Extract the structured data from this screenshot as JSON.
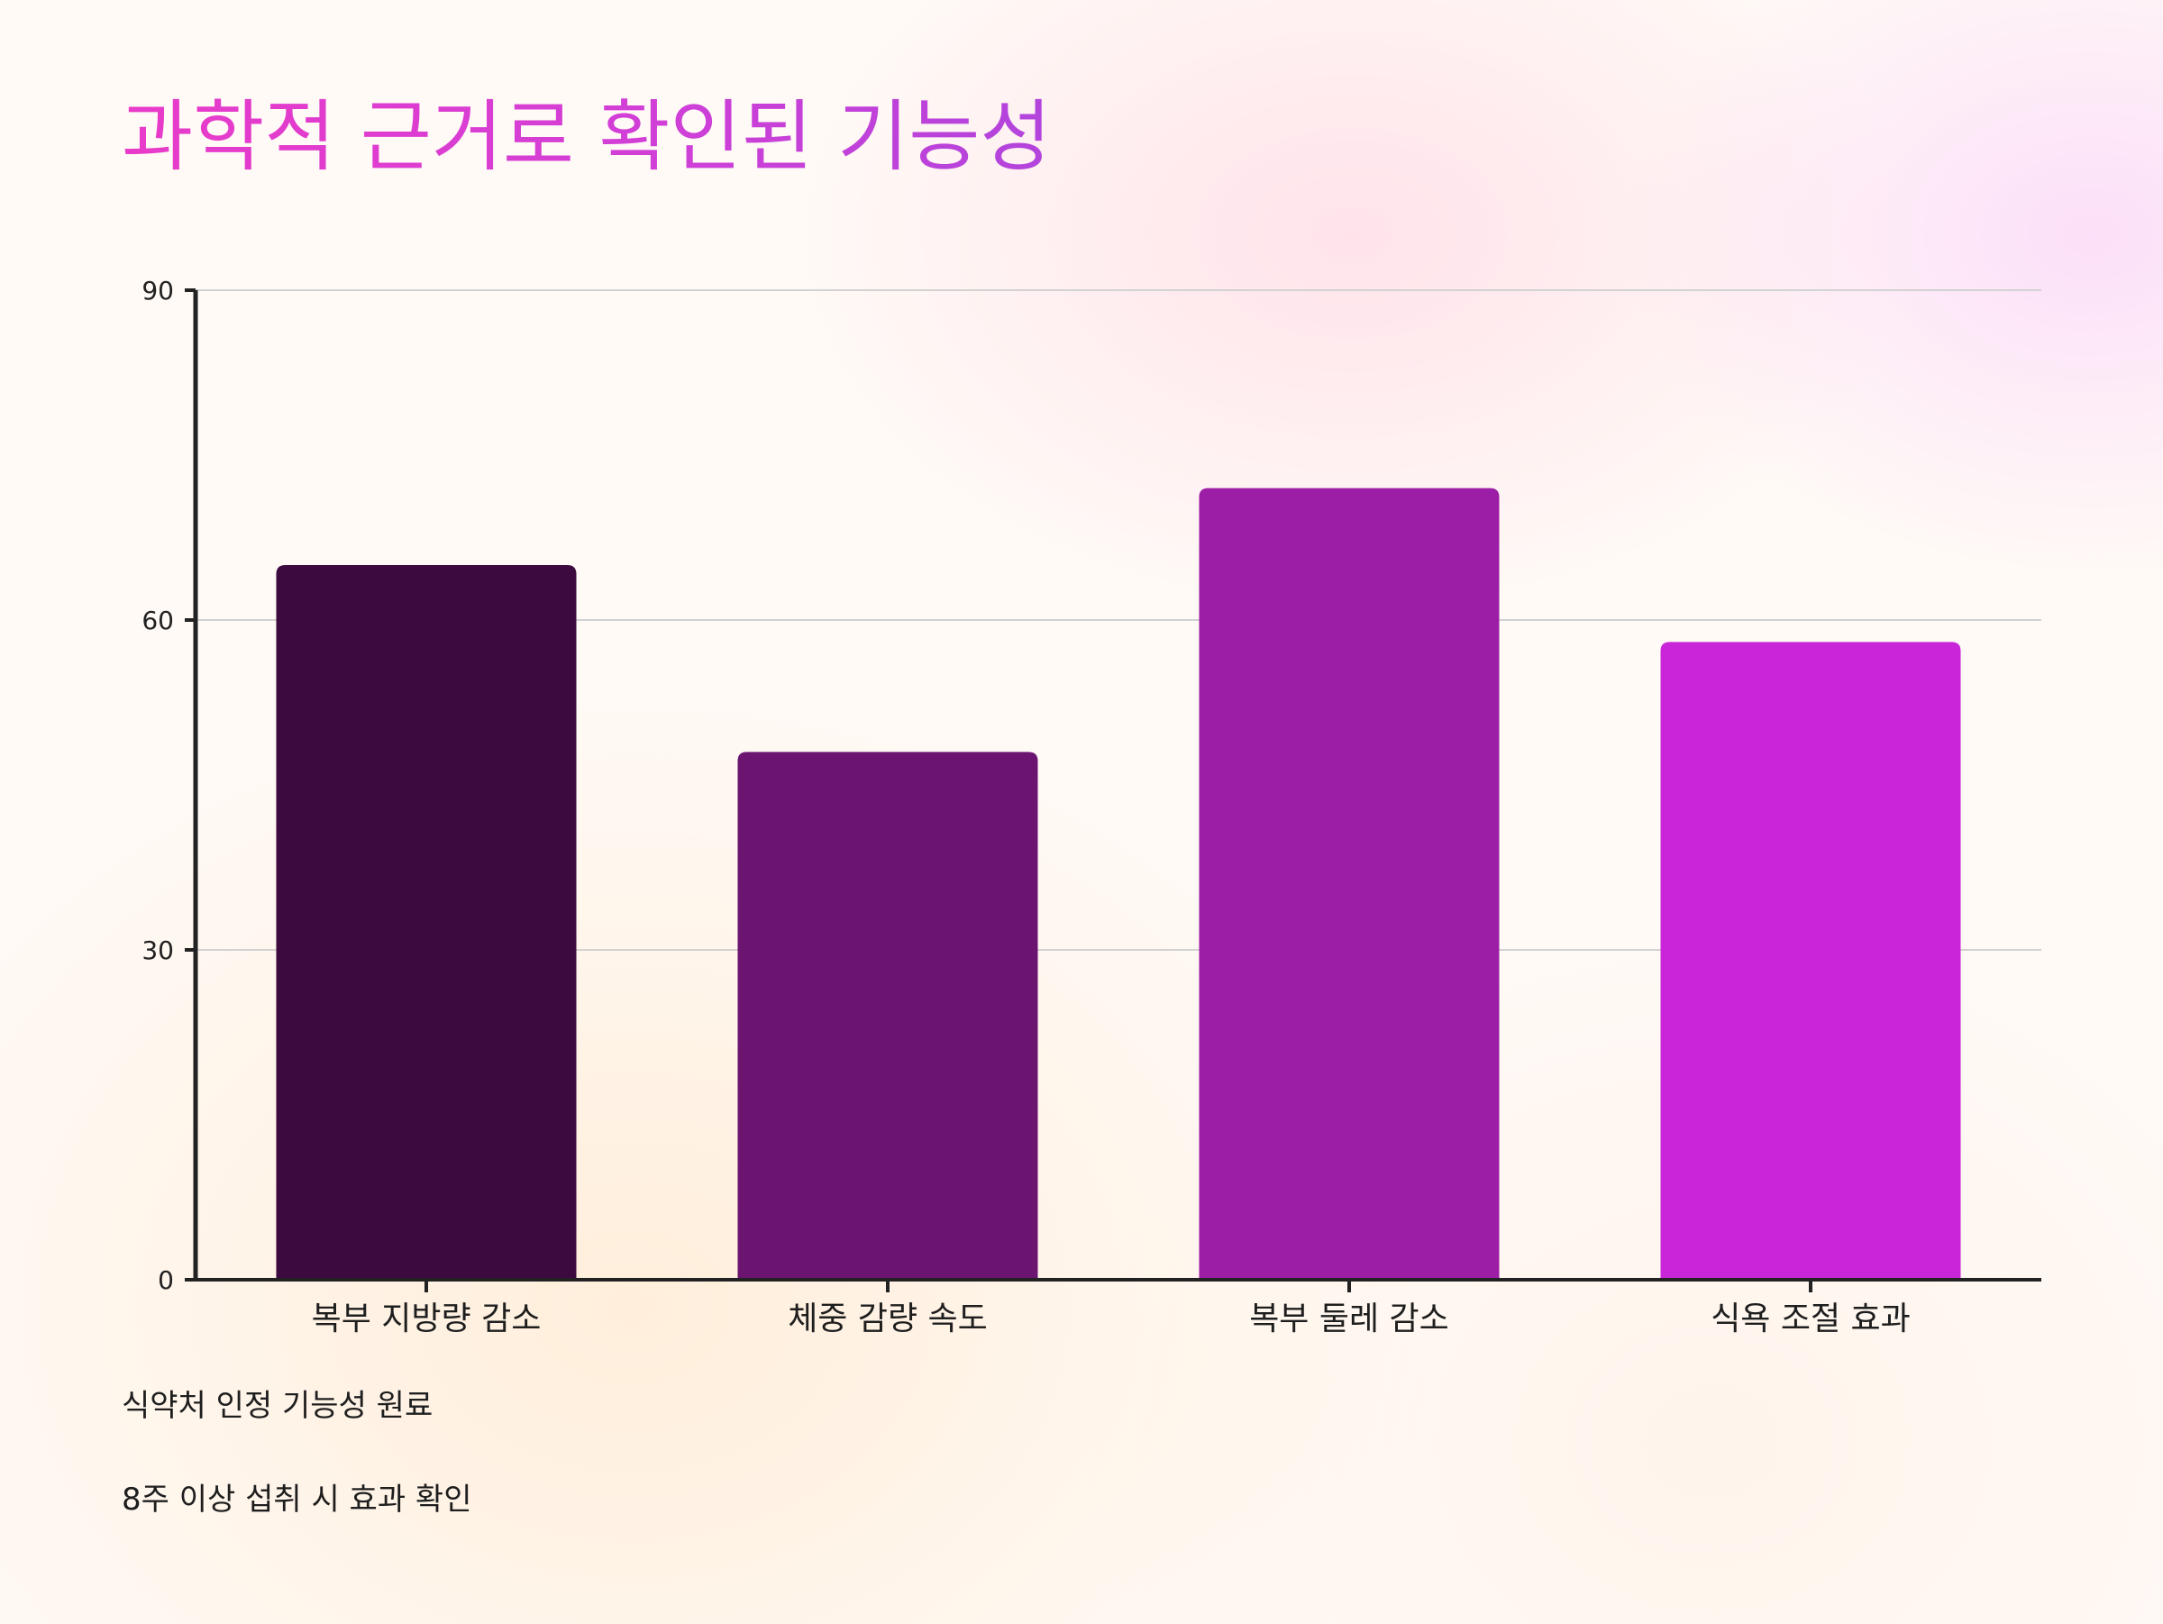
{
  "title": "과학적 근거로 확인된 기능성",
  "chart_data": {
    "type": "bar",
    "categories": [
      "복부 지방량 감소",
      "체중 감량 속도",
      "복부 둘레 감소",
      "식욕 조절 효과"
    ],
    "values": [
      65,
      48,
      72,
      58
    ],
    "colors": [
      "#3d0a3f",
      "#6b1470",
      "#9c1ea6",
      "#c826d8"
    ],
    "ylim": [
      0,
      90
    ],
    "yticks": [
      0,
      30,
      60,
      90
    ],
    "grid": true,
    "legend": "none",
    "xlabel": "",
    "ylabel": ""
  },
  "notes": [
    "식약처 인정 기능성 원료",
    "8주 이상 섭취 시 효과 확인"
  ]
}
